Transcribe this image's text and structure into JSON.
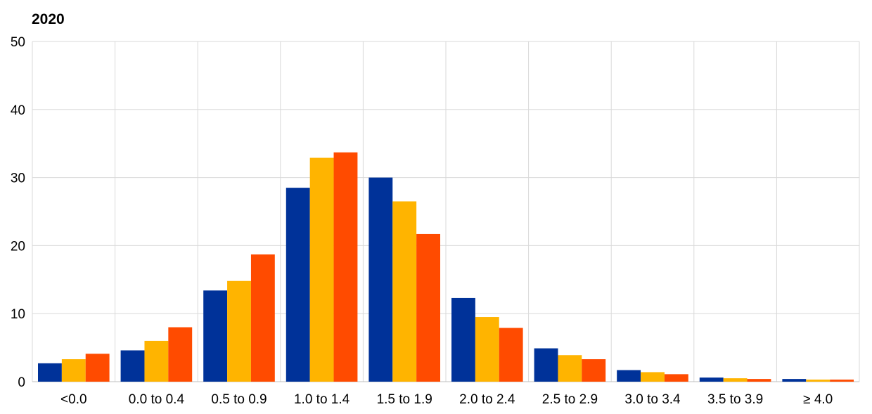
{
  "chart_data": {
    "type": "bar",
    "title": "2020",
    "xlabel": "",
    "ylabel": "",
    "ylim": [
      0,
      50
    ],
    "yticks": [
      0,
      10,
      20,
      30,
      40,
      50
    ],
    "grid": true,
    "categories": [
      "<0.0",
      "0.0 to 0.4",
      "0.5 to 0.9",
      "1.0 to 1.4",
      "1.5 to 1.9",
      "2.0 to 2.4",
      "2.5 to 2.9",
      "3.0 to 3.4",
      "3.5 to 3.9",
      "≥ 4.0"
    ],
    "series": [
      {
        "color": "#003299",
        "values": [
          2.7,
          4.6,
          13.4,
          28.5,
          30.0,
          12.3,
          4.9,
          1.7,
          0.6,
          0.4
        ]
      },
      {
        "color": "#FFB400",
        "values": [
          3.3,
          6.0,
          14.8,
          32.9,
          26.5,
          9.5,
          3.9,
          1.4,
          0.5,
          0.3
        ]
      },
      {
        "color": "#FF4B00",
        "values": [
          4.1,
          8.0,
          18.7,
          33.7,
          21.7,
          7.9,
          3.3,
          1.1,
          0.4,
          0.3
        ]
      }
    ]
  }
}
